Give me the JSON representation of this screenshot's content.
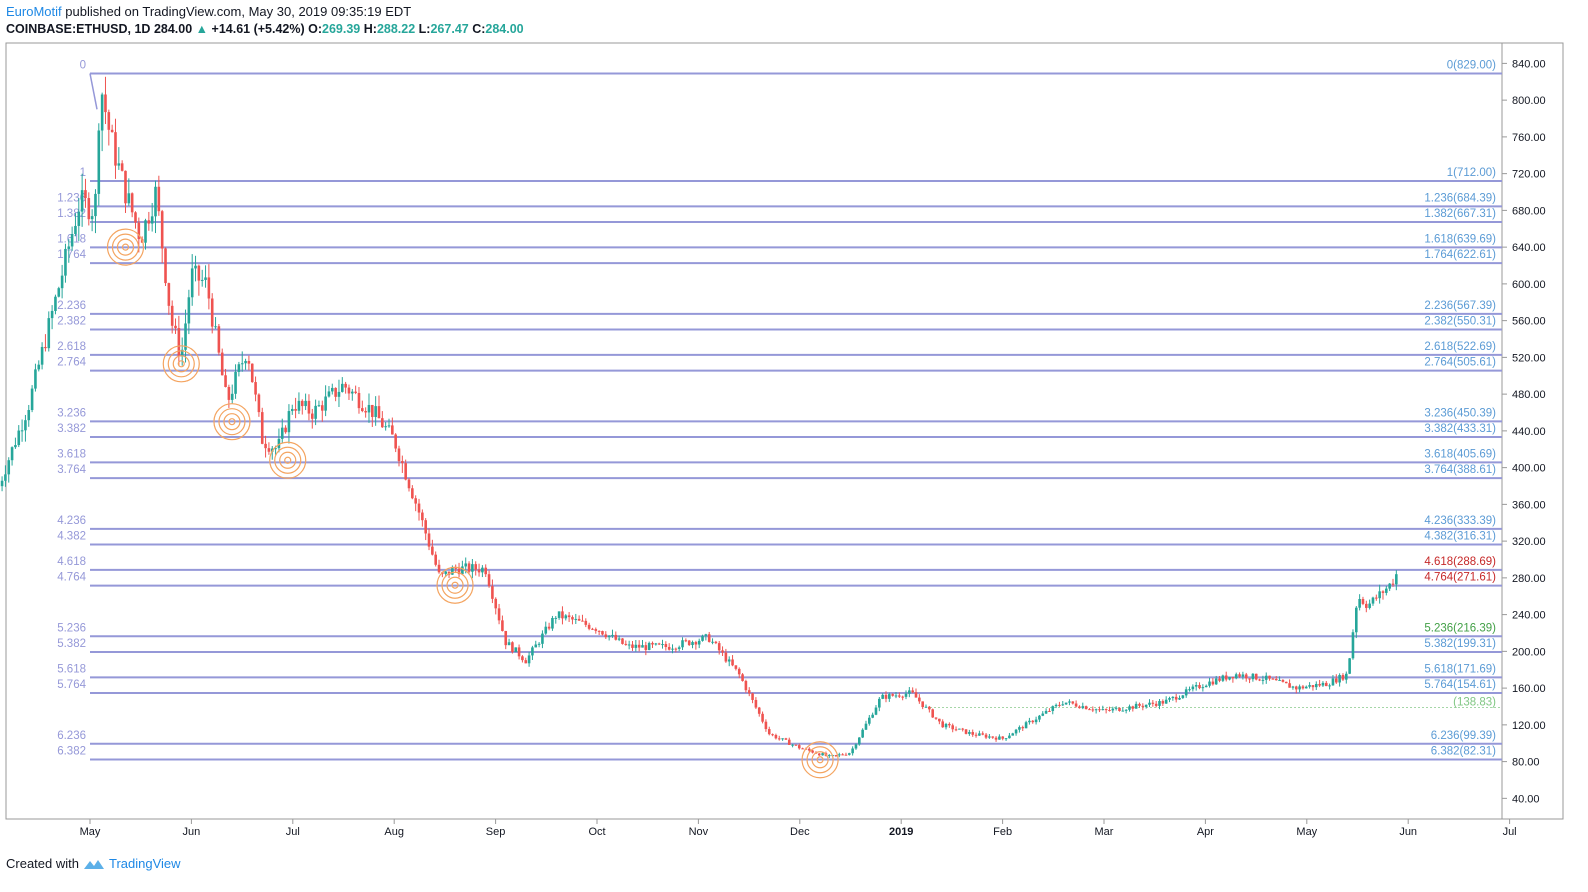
{
  "header": {
    "author": "EuroMotif",
    "published_text": "published on TradingView.com, May 30, 2019 09:35:19 EDT",
    "symbol": "COINBASE:ETHUSD, 1D",
    "last": "284.00",
    "change": "+14.61 (+5.42%)",
    "o_label": "O:",
    "o_value": "269.39",
    "h_label": "H:",
    "h_value": "288.22",
    "l_label": "L:",
    "l_value": "267.47",
    "c_label": "C:",
    "c_value": "284.00"
  },
  "footer": {
    "created_with": "Created with",
    "brand": "TradingView"
  },
  "colors": {
    "up": "#26a69a",
    "down": "#ef5350",
    "fib_line": "#9598d8",
    "fib_label": "#5b9bd5",
    "fib_left_label": "#9598d8",
    "highlight_red": "#c62828",
    "highlight_green": "#43a047",
    "circle": "#f4a460"
  },
  "chart_data": {
    "type": "candlestick",
    "title": "",
    "ylim": [
      40,
      850
    ],
    "y_ticks": [
      "840.00",
      "800.00",
      "760.00",
      "720.00",
      "680.00",
      "640.00",
      "600.00",
      "560.00",
      "520.00",
      "480.00",
      "440.00",
      "400.00",
      "360.00",
      "320.00",
      "280.00",
      "240.00",
      "200.00",
      "160.00",
      "120.00",
      "80.00",
      "40.00"
    ],
    "x_ticks": [
      "May",
      "Jun",
      "Jul",
      "Aug",
      "Sep",
      "Oct",
      "Nov",
      "Dec",
      "2019",
      "Feb",
      "Mar",
      "Apr",
      "May",
      "Jun",
      "Jul"
    ],
    "fib_levels": [
      {
        "ratio": "0",
        "price": 829.0,
        "right": "0(829.00)",
        "left": "0"
      },
      {
        "ratio": "1",
        "price": 712.0,
        "right": "1(712.00)",
        "left": "1"
      },
      {
        "ratio": "1.236",
        "price": 684.39,
        "right": "1.236(684.39)",
        "left": "1.236"
      },
      {
        "ratio": "1.382",
        "price": 667.31,
        "right": "1.382(667.31)",
        "left": "1.382"
      },
      {
        "ratio": "1.618",
        "price": 639.69,
        "right": "1.618(639.69)",
        "left": "1.618"
      },
      {
        "ratio": "1.764",
        "price": 622.61,
        "right": "1.764(622.61)",
        "left": "1.764"
      },
      {
        "ratio": "2.236",
        "price": 567.39,
        "right": "2.236(567.39)",
        "left": "2.236"
      },
      {
        "ratio": "2.382",
        "price": 550.31,
        "right": "2.382(550.31)",
        "left": "2.382"
      },
      {
        "ratio": "2.618",
        "price": 522.69,
        "right": "2.618(522.69)",
        "left": "2.618"
      },
      {
        "ratio": "2.764",
        "price": 505.61,
        "right": "2.764(505.61)",
        "left": "2.764"
      },
      {
        "ratio": "3.236",
        "price": 450.39,
        "right": "3.236(450.39)",
        "left": "3.236"
      },
      {
        "ratio": "3.382",
        "price": 433.31,
        "right": "3.382(433.31)",
        "left": "3.382"
      },
      {
        "ratio": "3.618",
        "price": 405.69,
        "right": "3.618(405.69)",
        "left": "3.618"
      },
      {
        "ratio": "3.764",
        "price": 388.61,
        "right": "3.764(388.61)",
        "left": "3.764"
      },
      {
        "ratio": "4.236",
        "price": 333.39,
        "right": "4.236(333.39)",
        "left": "4.236"
      },
      {
        "ratio": "4.382",
        "price": 316.31,
        "right": "4.382(316.31)",
        "left": "4.382"
      },
      {
        "ratio": "4.618",
        "price": 288.69,
        "right": "4.618(288.69)",
        "left": "4.618",
        "color": "red"
      },
      {
        "ratio": "4.764",
        "price": 271.61,
        "right": "4.764(271.61)",
        "left": "4.764",
        "color": "red"
      },
      {
        "ratio": "5.236",
        "price": 216.39,
        "right": "5.236(216.39)",
        "left": "5.236",
        "color": "green"
      },
      {
        "ratio": "5.382",
        "price": 199.31,
        "right": "5.382(199.31)",
        "left": "5.382"
      },
      {
        "ratio": "5.618",
        "price": 171.69,
        "right": "5.618(171.69)",
        "left": "5.618"
      },
      {
        "ratio": "5.764",
        "price": 154.61,
        "right": "5.764(154.61)",
        "left": "5.764"
      },
      {
        "ratio": "6.236",
        "price": 99.39,
        "right": "6.236(99.39)",
        "left": "6.236"
      },
      {
        "ratio": "6.382",
        "price": 82.31,
        "right": "6.382(82.31)",
        "left": "6.382"
      }
    ],
    "extra_level": {
      "price": 138.83,
      "label": "(138.83)"
    },
    "price_path": [
      {
        "m": -0.9,
        "p": 380
      },
      {
        "m": -0.6,
        "p": 470
      },
      {
        "m": -0.3,
        "p": 600
      },
      {
        "m": -0.1,
        "p": 690
      },
      {
        "m": 0.05,
        "p": 680
      },
      {
        "m": 0.1,
        "p": 820
      },
      {
        "m": 0.2,
        "p": 760
      },
      {
        "m": 0.35,
        "p": 700
      },
      {
        "m": 0.5,
        "p": 650
      },
      {
        "m": 0.65,
        "p": 700
      },
      {
        "m": 0.8,
        "p": 560
      },
      {
        "m": 0.9,
        "p": 520
      },
      {
        "m": 1.0,
        "p": 610
      },
      {
        "m": 1.15,
        "p": 600
      },
      {
        "m": 1.35,
        "p": 470
      },
      {
        "m": 1.55,
        "p": 530
      },
      {
        "m": 1.7,
        "p": 430
      },
      {
        "m": 1.85,
        "p": 420
      },
      {
        "m": 2.0,
        "p": 470
      },
      {
        "m": 2.2,
        "p": 460
      },
      {
        "m": 2.5,
        "p": 490
      },
      {
        "m": 2.8,
        "p": 460
      },
      {
        "m": 3.0,
        "p": 430
      },
      {
        "m": 3.25,
        "p": 350
      },
      {
        "m": 3.45,
        "p": 280
      },
      {
        "m": 3.6,
        "p": 290
      },
      {
        "m": 3.9,
        "p": 290
      },
      {
        "m": 4.1,
        "p": 210
      },
      {
        "m": 4.3,
        "p": 190
      },
      {
        "m": 4.6,
        "p": 240
      },
      {
        "m": 5.0,
        "p": 225
      },
      {
        "m": 5.3,
        "p": 205
      },
      {
        "m": 5.7,
        "p": 205
      },
      {
        "m": 6.1,
        "p": 215
      },
      {
        "m": 6.4,
        "p": 175
      },
      {
        "m": 6.7,
        "p": 110
      },
      {
        "m": 7.0,
        "p": 95
      },
      {
        "m": 7.3,
        "p": 85
      },
      {
        "m": 7.5,
        "p": 90
      },
      {
        "m": 7.8,
        "p": 150
      },
      {
        "m": 8.1,
        "p": 155
      },
      {
        "m": 8.4,
        "p": 120
      },
      {
        "m": 8.7,
        "p": 110
      },
      {
        "m": 9.0,
        "p": 105
      },
      {
        "m": 9.3,
        "p": 125
      },
      {
        "m": 9.6,
        "p": 145
      },
      {
        "m": 9.8,
        "p": 140
      },
      {
        "m": 10.0,
        "p": 135
      },
      {
        "m": 10.3,
        "p": 140
      },
      {
        "m": 10.6,
        "p": 145
      },
      {
        "m": 11.0,
        "p": 165
      },
      {
        "m": 11.3,
        "p": 175
      },
      {
        "m": 11.6,
        "p": 170
      },
      {
        "m": 11.9,
        "p": 160
      },
      {
        "m": 12.2,
        "p": 165
      },
      {
        "m": 12.4,
        "p": 175
      },
      {
        "m": 12.5,
        "p": 260
      },
      {
        "m": 12.6,
        "p": 250
      },
      {
        "m": 12.8,
        "p": 270
      },
      {
        "m": 12.9,
        "p": 284
      }
    ],
    "highlight_circles": [
      {
        "m": 0.35,
        "p": 640
      },
      {
        "m": 0.9,
        "p": 513
      },
      {
        "m": 1.4,
        "p": 450
      },
      {
        "m": 1.95,
        "p": 408
      },
      {
        "m": 3.6,
        "p": 272
      },
      {
        "m": 7.2,
        "p": 82
      }
    ]
  }
}
